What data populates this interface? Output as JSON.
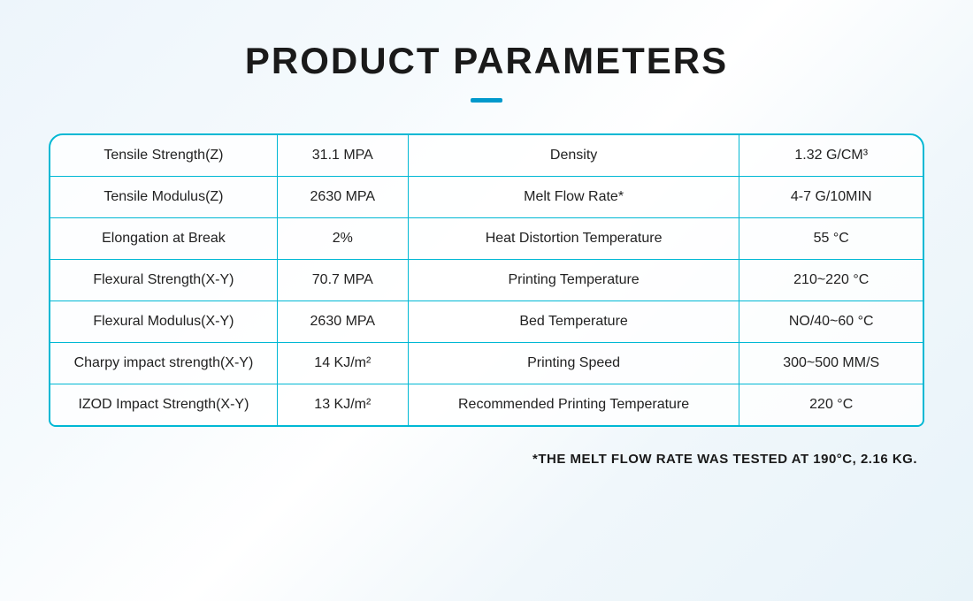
{
  "title": "PRODUCT PARAMETERS",
  "accent_color": "#00b8d4",
  "underline_color": "#0099cc",
  "background_gradient": [
    "#edf5fb",
    "#f5fafd",
    "#ffffff",
    "#f0f7fb",
    "#e8f3f9"
  ],
  "text_color": "#1a1a1a",
  "title_fontsize": 42,
  "cell_fontsize": 16,
  "footnote_fontsize": 15,
  "rows": [
    {
      "label1": "Tensile Strength(Z)",
      "val1": "31.1 MPA",
      "label2": "Density",
      "val2": "1.32 G/CM³"
    },
    {
      "label1": "Tensile Modulus(Z)",
      "val1": "2630 MPA",
      "label2": "Melt Flow Rate*",
      "val2": "4-7 G/10MIN"
    },
    {
      "label1": "Elongation at Break",
      "val1": "2%",
      "label2": "Heat Distortion Temperature",
      "val2": "55 °C"
    },
    {
      "label1": "Flexural Strength(X-Y)",
      "val1": "70.7 MPA",
      "label2": "Printing Temperature",
      "val2": "210~220 °C"
    },
    {
      "label1": "Flexural Modulus(X-Y)",
      "val1": "2630 MPA",
      "label2": "Bed Temperature",
      "val2": "NO/40~60 °C"
    },
    {
      "label1": "Charpy impact strength(X-Y)",
      "val1": "14 KJ/m²",
      "label2": "Printing Speed",
      "val2": "300~500 MM/S"
    },
    {
      "label1": "IZOD Impact Strength(X-Y)",
      "val1": "13 KJ/m²",
      "label2": "Recommended Printing Temperature",
      "val2": "220 °C"
    }
  ],
  "footnote": "*THE MELT FLOW RATE WAS TESTED AT 190°C, 2.16 KG."
}
